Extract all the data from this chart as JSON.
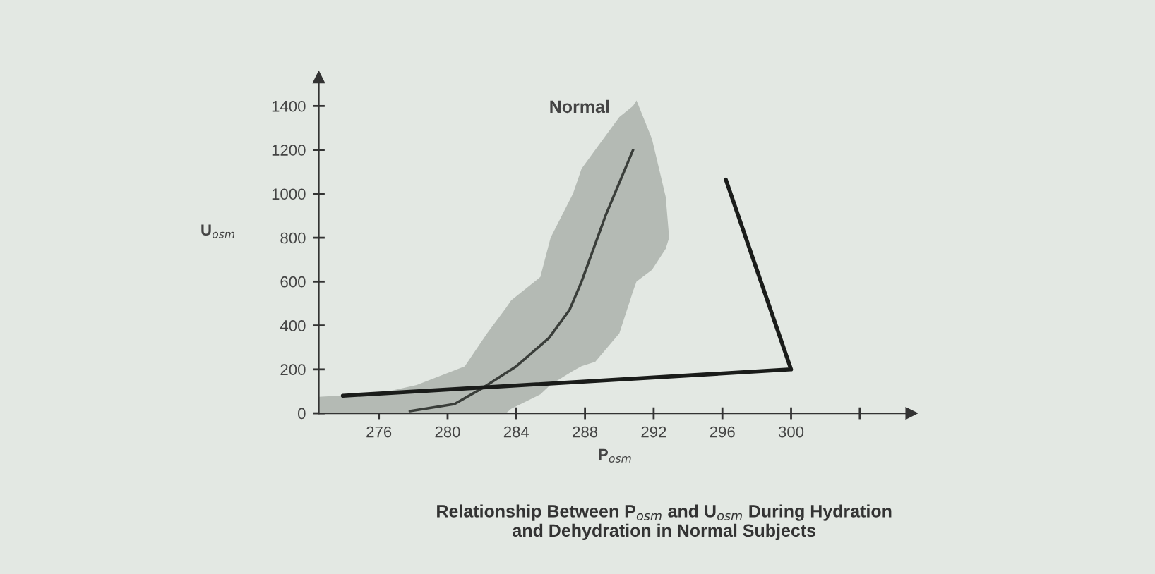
{
  "chart_data": {
    "type": "line",
    "title": "Normal",
    "xlabel": "P$_{osm}$",
    "ylabel": "U$_{osm}$",
    "xlim": [
      272.5,
      307
    ],
    "ylim": [
      0,
      1530
    ],
    "xticks": [
      276,
      280,
      284,
      288,
      292,
      296,
      300,
      {
        "value": 304,
        "label": null
      }
    ],
    "yticks": [
      0,
      200,
      400,
      600,
      800,
      1000,
      1200,
      1400
    ],
    "grid": false,
    "marker": "none",
    "line_style": "solid",
    "series": [
      {
        "color": "#b4bab4",
        "x": [
          272.5,
          276,
          278.2,
          281,
          282.3,
          283.4,
          283.7,
          285.4,
          286.0,
          287.3,
          287.8,
          288.6,
          290.0,
          290.8,
          291.0,
          291.9,
          292.7,
          292.9
        ],
        "values": [
          null,
          null,
          null,
          null,
          null,
          null,
          null,
          null,
          null,
          null,
          null,
          null,
          null,
          null,
          null,
          null,
          null,
          null
        ],
        "upper": [
          75,
          90,
          129,
          214,
          364,
          480,
          514,
          621,
          800,
          1000,
          1114,
          1200,
          1350,
          1400,
          1425,
          1250,
          986,
          800
        ],
        "lower": [
          0,
          0,
          0,
          0,
          0,
          0,
          20,
          86,
          130,
          193,
          215,
          235,
          364,
          557,
          600,
          653,
          750,
          800
        ]
      },
      {
        "color": "#3a3e3a",
        "x": [
          277.8,
          280.4,
          282.1,
          284.0,
          285.9,
          287.1,
          287.8,
          289.2,
          290.8
        ],
        "values": [
          10,
          42,
          118,
          214,
          343,
          471,
          600,
          901,
          1200
        ]
      },
      {
        "color": "#1a1c1a",
        "x": [
          273.9,
          300,
          296.2
        ],
        "values": [
          80,
          200,
          1065
        ]
      }
    ],
    "annotations": [
      "Relationship Between P$_{osm}$ and U$_{osm}$ During Hydration\nand Dehydration in Normal Subjects"
    ]
  }
}
